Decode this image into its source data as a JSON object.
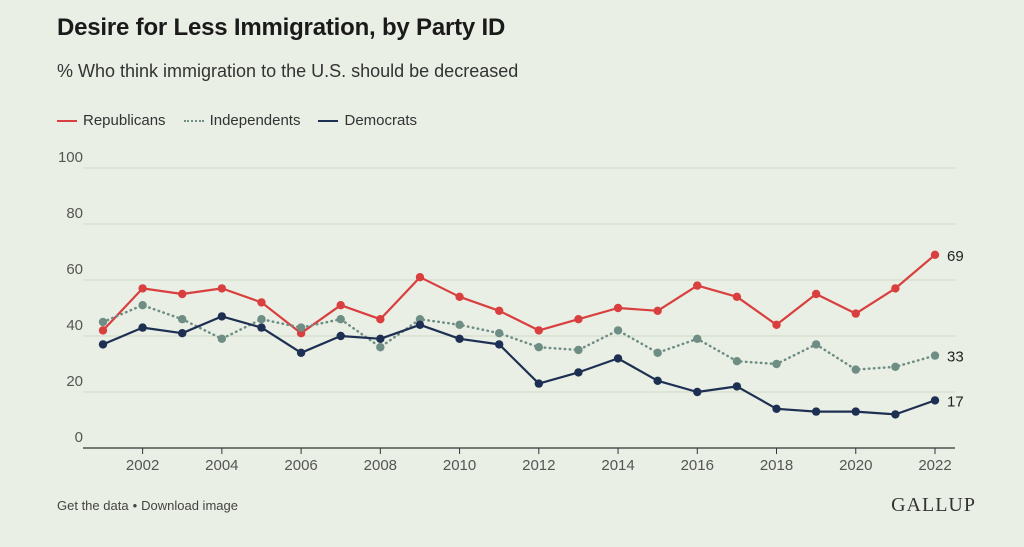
{
  "header": {
    "title": "Desire for Less Immigration, by Party ID",
    "subtitle": "% Who think immigration to the U.S. should be decreased"
  },
  "footer": {
    "get_data": "Get the data",
    "separator": "•",
    "download": "Download image",
    "brand": "GALLUP"
  },
  "colors": {
    "republicans": "#d93f3f",
    "independents": "#6e8d84",
    "democrats": "#1d2f52",
    "grid": "#cfd8c9",
    "axis": "#333333",
    "tick_text": "#555555"
  },
  "chart_data": {
    "type": "line",
    "title": "Desire for Less Immigration, by Party ID",
    "subtitle": "% Who think immigration to the U.S. should be decreased",
    "xlabel": "",
    "ylabel": "",
    "ylim": [
      0,
      100
    ],
    "yticks": [
      0,
      20,
      40,
      60,
      80,
      100
    ],
    "xlim": [
      2001,
      2022
    ],
    "xticks": [
      2002,
      2004,
      2006,
      2008,
      2010,
      2012,
      2014,
      2016,
      2018,
      2020,
      2022
    ],
    "grid": true,
    "legend_position": "top-left",
    "x": [
      2001,
      2002,
      2003,
      2004,
      2005,
      2006,
      2007,
      2008,
      2009,
      2010,
      2011,
      2012,
      2013,
      2014,
      2015,
      2016,
      2017,
      2018,
      2019,
      2020,
      2021,
      2022
    ],
    "series": [
      {
        "name": "Republicans",
        "key": "republicans",
        "style": "solid",
        "values": [
          42,
          57,
          55,
          57,
          52,
          41,
          51,
          46,
          61,
          54,
          49,
          42,
          46,
          50,
          49,
          58,
          54,
          44,
          55,
          48,
          57,
          69
        ],
        "end_label": "69"
      },
      {
        "name": "Independents",
        "key": "independents",
        "style": "dotted",
        "values": [
          45,
          51,
          46,
          39,
          46,
          43,
          46,
          36,
          46,
          44,
          41,
          36,
          35,
          42,
          34,
          39,
          31,
          30,
          37,
          28,
          29,
          33
        ],
        "end_label": "33"
      },
      {
        "name": "Democrats",
        "key": "democrats",
        "style": "solid",
        "values": [
          37,
          43,
          41,
          47,
          43,
          34,
          40,
          39,
          44,
          39,
          37,
          23,
          27,
          32,
          24,
          20,
          22,
          14,
          13,
          13,
          12,
          17
        ],
        "end_label": "17"
      }
    ]
  }
}
